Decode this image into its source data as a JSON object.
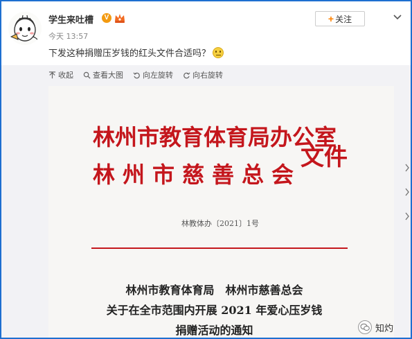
{
  "post": {
    "username": "学生来吐槽",
    "verified_badge": "V",
    "time": "今天 13:57",
    "content": "下发这种捐赠压岁钱的红头文件合适吗？",
    "emoji_icon": "pensive-face-icon",
    "follow_label": "关注"
  },
  "toolbar": {
    "collapse": "收起",
    "view_large": "查看大图",
    "rotate_left": "向左旋转",
    "rotate_right": "向右旋转"
  },
  "document": {
    "org_line_1": "林州市教育体育局办公室",
    "org_line_2": "林州市慈善总会",
    "file_word": "文件",
    "doc_number": "林教体办〔2021〕1号",
    "title_line_1": "林州市教育体育局　林州市慈善总会",
    "title_line_2": "关于在全市范围内开展 2021 年爱心压岁钱",
    "title_line_3": "捐赠活动的通知",
    "header_color": "#c4161c"
  },
  "watermark": {
    "text": "知灼"
  }
}
